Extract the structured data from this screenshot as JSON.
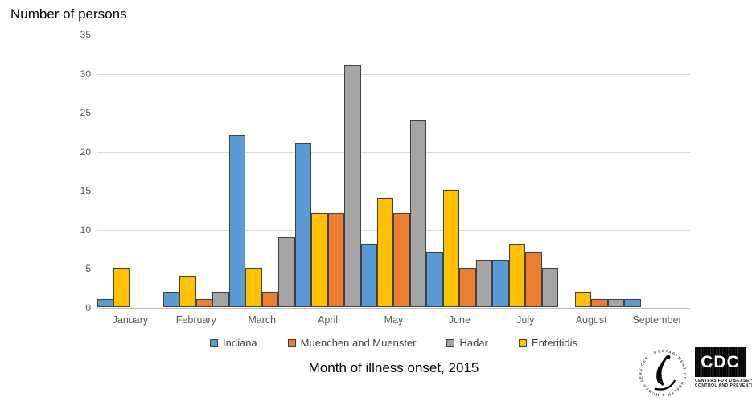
{
  "chart_data": {
    "type": "bar",
    "title": "Number of persons",
    "xlabel": "Month of illness onset, 2015",
    "ylabel": "",
    "ylim": [
      0,
      35
    ],
    "yticks": [
      0,
      5,
      10,
      15,
      20,
      25,
      30,
      35
    ],
    "grid": true,
    "legend_position": "bottom",
    "categories": [
      "January",
      "February",
      "March",
      "April",
      "May",
      "June",
      "July",
      "August",
      "September"
    ],
    "series": [
      {
        "name": "Indiana",
        "color": "#5B9BD5",
        "values": [
          1,
          2,
          22,
          21,
          8,
          7,
          6,
          0,
          1
        ]
      },
      {
        "name": "Muenchen and Muenster",
        "color": "#ED7D31",
        "values": [
          0,
          1,
          2,
          12,
          12,
          5,
          7,
          1,
          0
        ]
      },
      {
        "name": "Hadar",
        "color": "#A5A5A5",
        "values": [
          0,
          2,
          9,
          31,
          24,
          6,
          5,
          1,
          0
        ]
      },
      {
        "name": "Enteritidis",
        "color": "#FFC000",
        "values": [
          5,
          4,
          5,
          12,
          14,
          15,
          8,
          2,
          0
        ]
      }
    ],
    "plot_order": [
      0,
      3,
      1,
      2
    ],
    "colors": {
      "bar_outline": "#404040",
      "gridline": "#D9D9D9",
      "axis_line": "#BFBFBF",
      "tick_text": "#595959",
      "legend_text": "#404040",
      "title_text": "#000000"
    }
  },
  "logos": {
    "hhs_ring_text": "DEPARTMENT OF HEALTH & HUMAN SERVICES • USA",
    "cdc_text": "CDC",
    "cdc_caption_line1": "CENTERS FOR DISEASE™",
    "cdc_caption_line2": "CONTROL AND PREVENTION"
  }
}
